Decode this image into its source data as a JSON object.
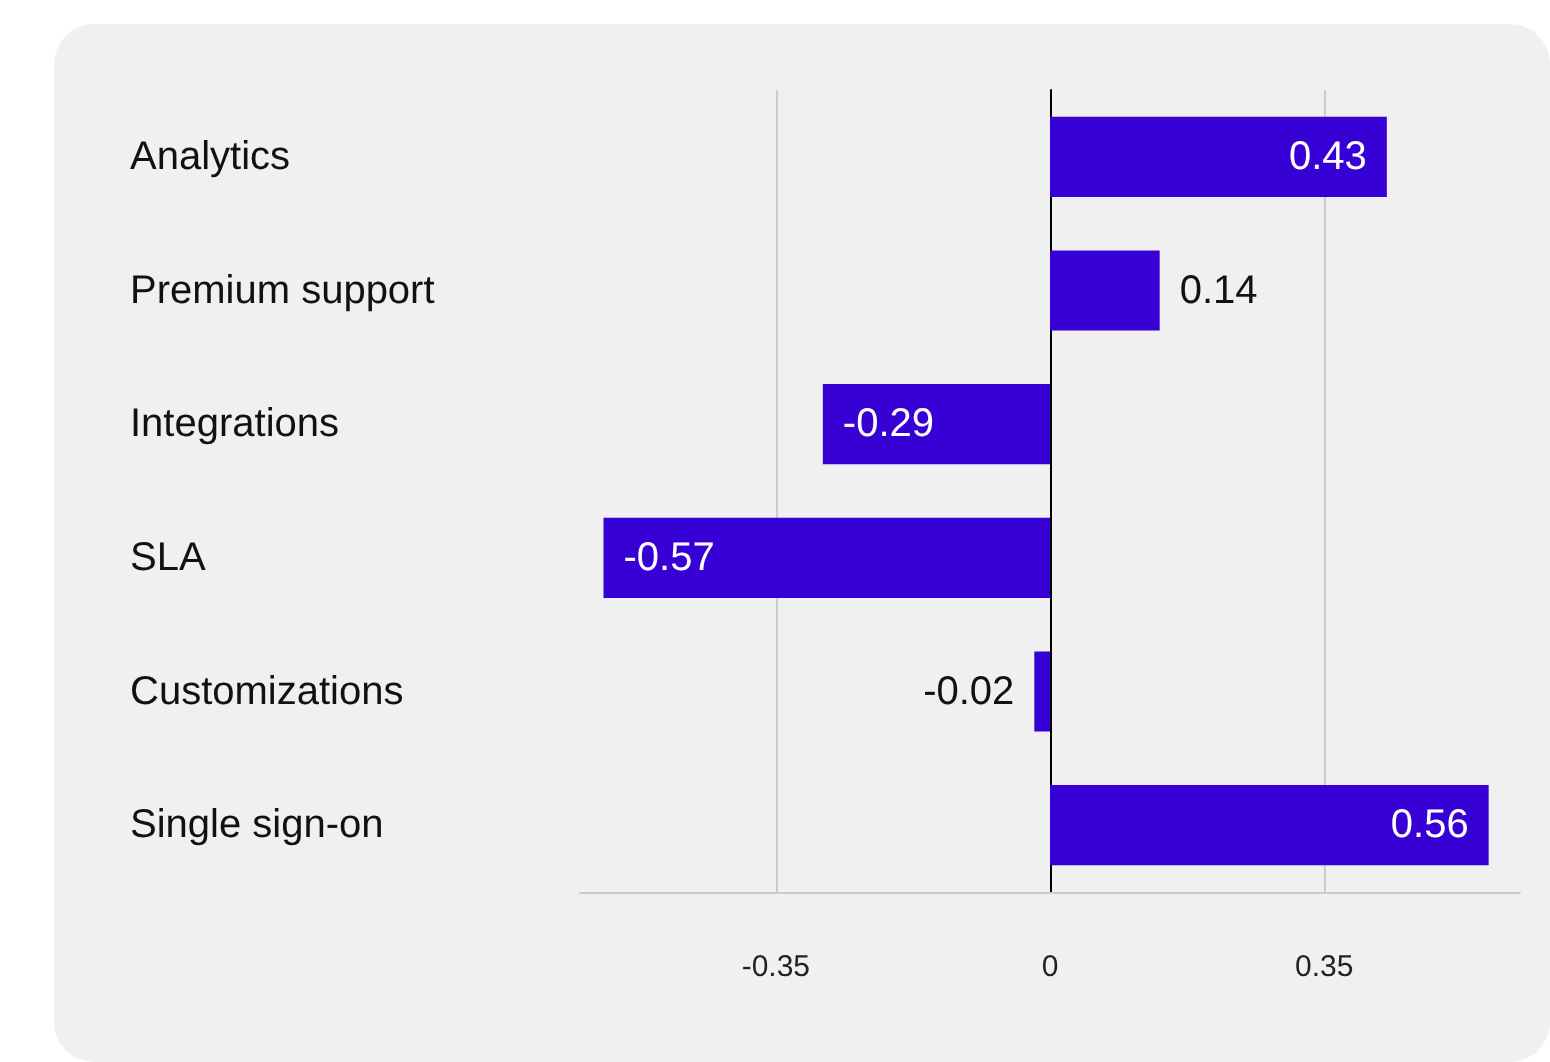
{
  "chart_data": {
    "type": "bar",
    "orientation": "horizontal",
    "categories": [
      "Analytics",
      "Premium support",
      "Integrations",
      "SLA",
      "Customizations",
      "Single sign-on"
    ],
    "values": [
      0.43,
      0.14,
      -0.29,
      -0.57,
      -0.02,
      0.56
    ],
    "color": "#3700d4",
    "xlim": [
      -0.6,
      0.6
    ],
    "xticks": [
      -0.35,
      0,
      0.35
    ],
    "grid": "x",
    "data_labels": true
  }
}
